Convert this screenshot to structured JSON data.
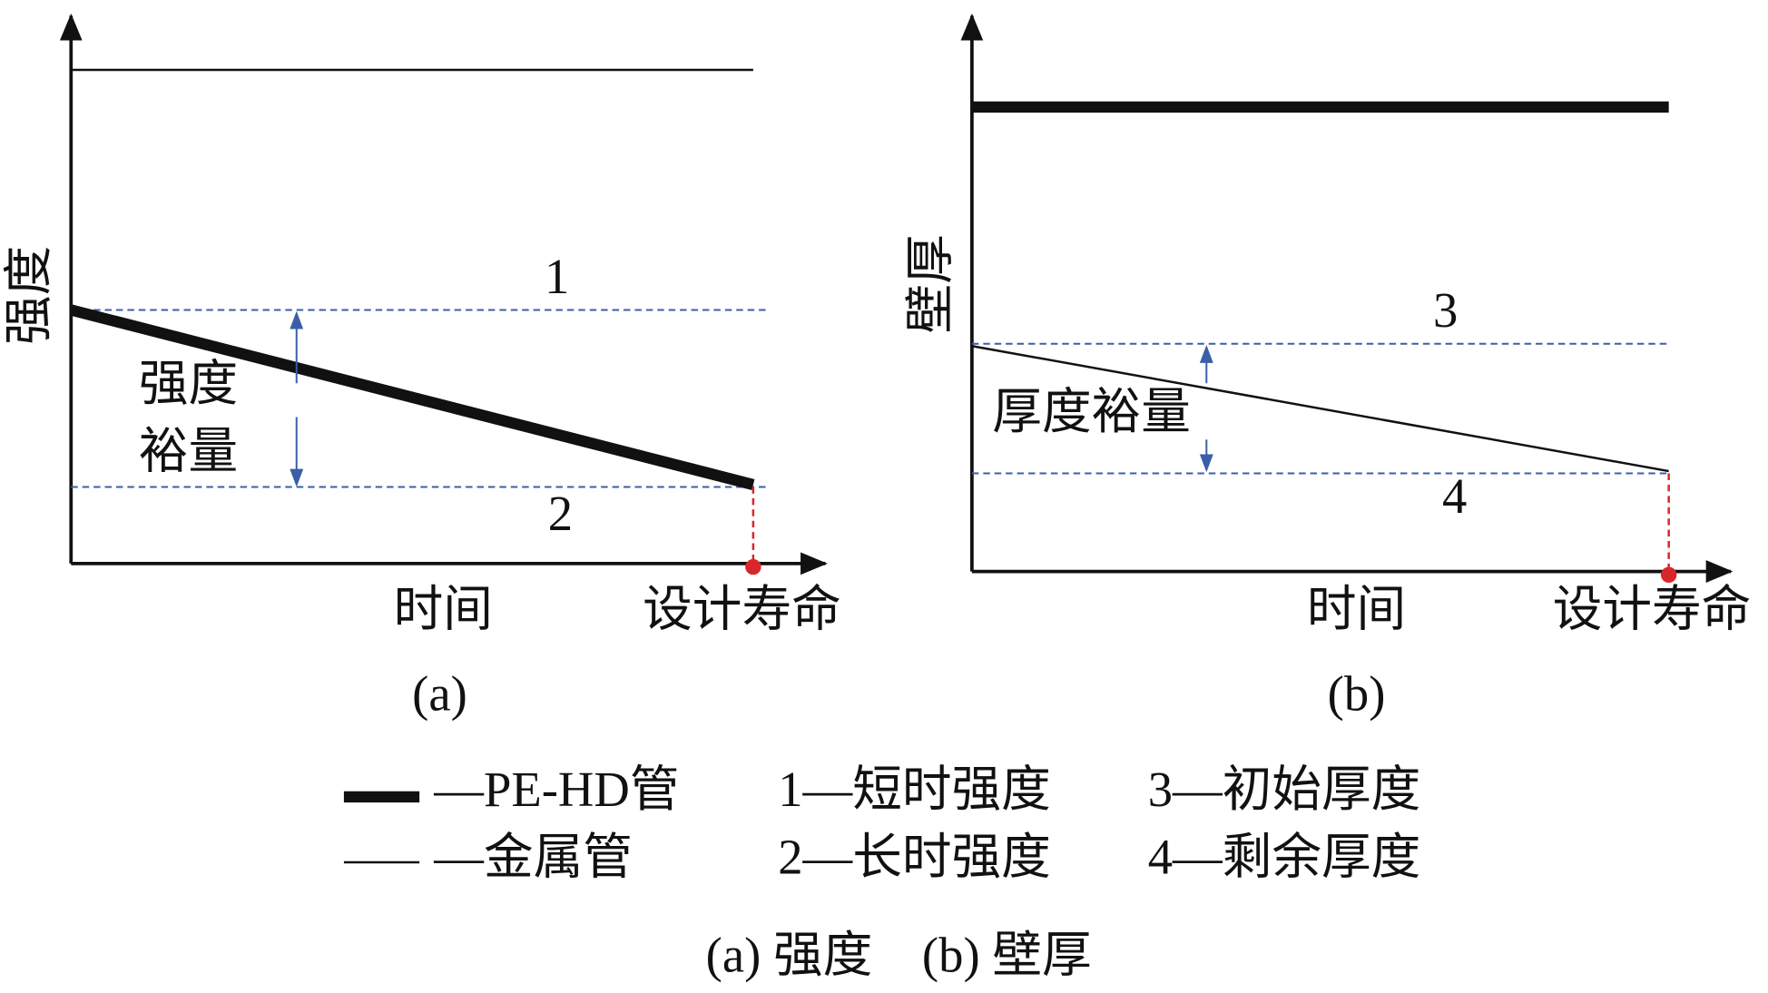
{
  "panel_a": {
    "y_label": "强度",
    "line_1": "1",
    "line_2": "2",
    "margin_label": [
      "强度",
      "裕量"
    ],
    "x_label": "时间",
    "x_end_label": "设计寿命",
    "tag": "(a)"
  },
  "panel_b": {
    "y_label": "壁厚",
    "line_3": "3",
    "line_4": "4",
    "margin_label": "厚度裕量",
    "x_label": "时间",
    "x_end_label": "设计寿命",
    "tag": "(b)"
  },
  "legend": {
    "thick": "—PE-HD管",
    "thin": "—金属管",
    "items": [
      "1—短时强度",
      "3—初始厚度",
      "2—长时强度",
      "4—剩余厚度"
    ]
  },
  "caption": "(a) 强度　(b) 壁厚"
}
